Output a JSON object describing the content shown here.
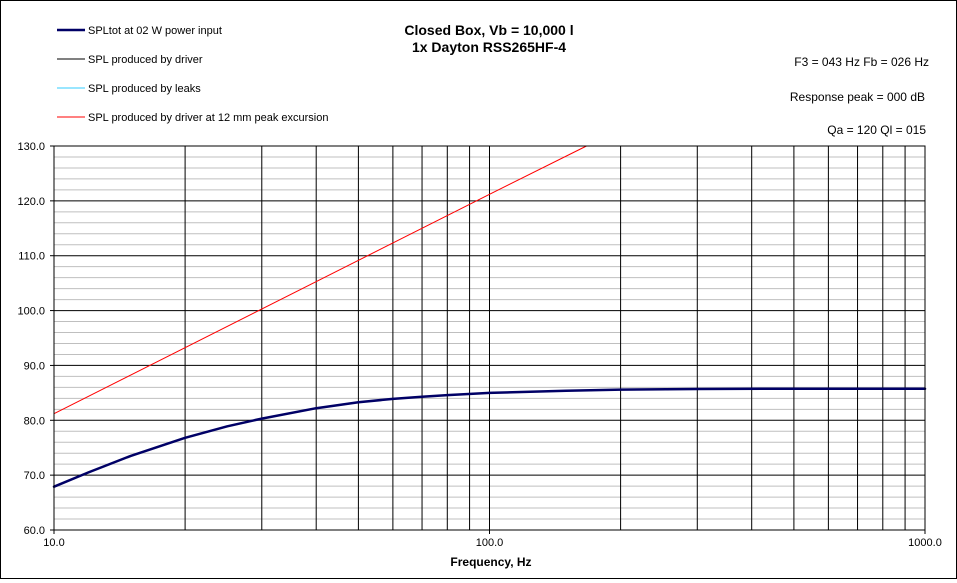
{
  "chart_data": {
    "type": "line",
    "title": "Closed Box, Vb = 10,000 l",
    "subtitle": "1x Dayton RSS265HF-4",
    "xlabel": "Frequency, Hz",
    "ylabel": "",
    "x_scale": "log",
    "xlim": [
      10.0,
      1000.0
    ],
    "ylim": [
      60.0,
      130.0
    ],
    "x_ticks": [
      "10.0",
      "100.0",
      "1000.0"
    ],
    "y_ticks": [
      "60.0",
      "70.0",
      "80.0",
      "90.0",
      "100.0",
      "110.0",
      "120.0",
      "130.0"
    ],
    "grid": true,
    "legend_position": "top-left",
    "annotations": [
      "F3 = 043 Hz  Fb = 026 Hz",
      "Response peak = 000  dB",
      "Qa = 120   Ql = 015"
    ],
    "series": [
      {
        "name": "SPLtot at 02 W power input",
        "color": "#000066",
        "x": [
          10,
          12,
          15,
          20,
          25,
          30,
          40,
          50,
          60,
          70,
          80,
          100,
          150,
          200,
          300,
          500,
          700,
          1000
        ],
        "y": [
          67.9,
          70.5,
          73.5,
          76.8,
          78.9,
          80.3,
          82.2,
          83.3,
          83.9,
          84.3,
          84.6,
          85.0,
          85.4,
          85.6,
          85.7,
          85.75,
          85.75,
          85.75
        ]
      },
      {
        "name": "SPL produced by driver",
        "color": "#000000",
        "x": [],
        "y": []
      },
      {
        "name": "SPL produced by leaks",
        "color": "#33ccff",
        "x": [],
        "y": []
      },
      {
        "name": "SPL produced by driver at 12 mm peak excursion",
        "color": "#ff0000",
        "x": [
          10,
          100,
          167
        ],
        "y": [
          81.2,
          121.2,
          130.0
        ]
      }
    ]
  }
}
